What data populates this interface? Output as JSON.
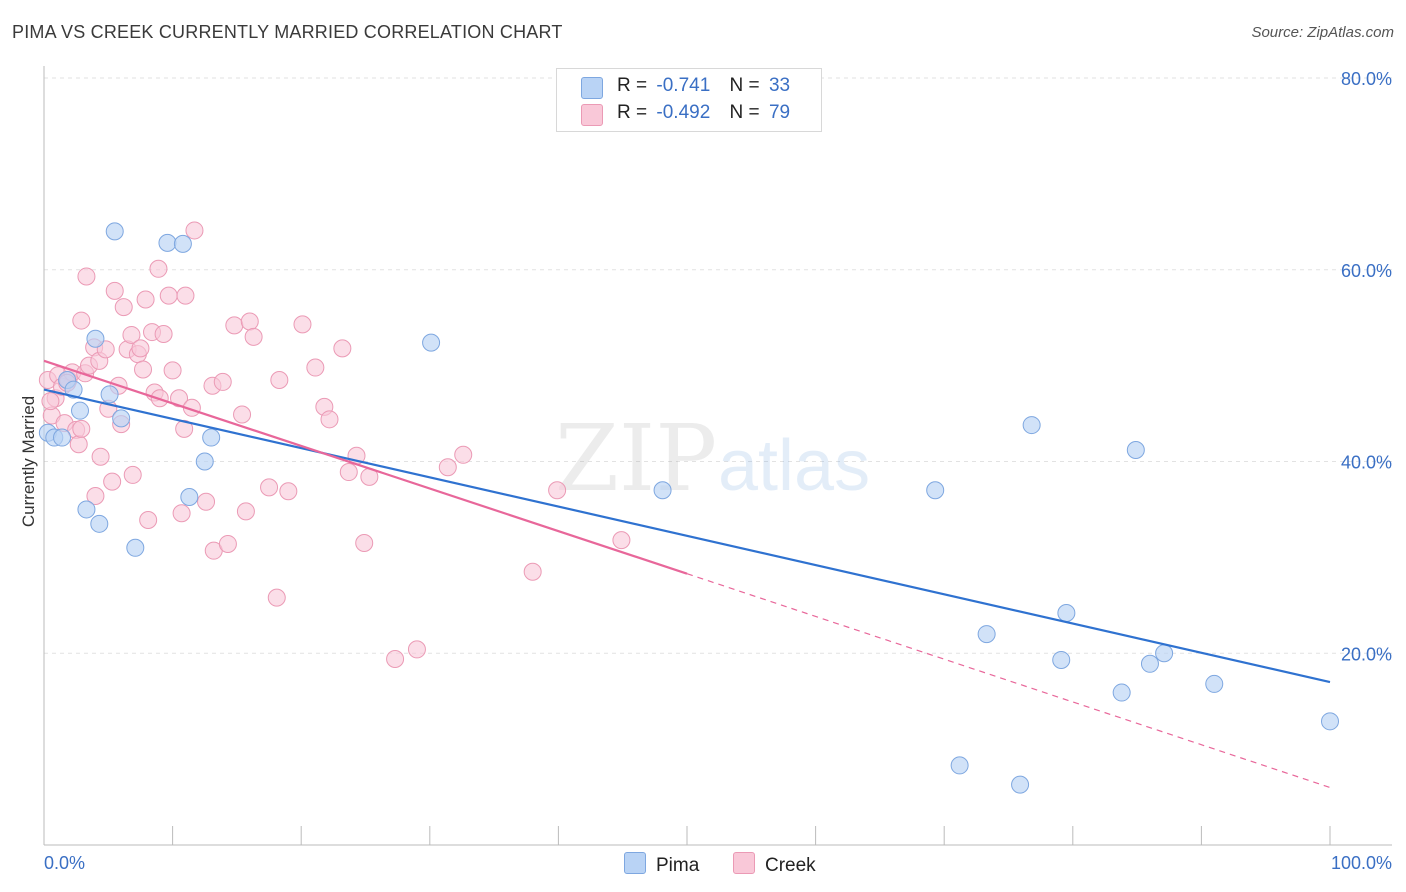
{
  "title": "PIMA VS CREEK CURRENTLY MARRIED CORRELATION CHART",
  "source": "Source: ZipAtlas.com",
  "watermark": {
    "zip": "ZIP",
    "atlas": "atlas"
  },
  "legend": {
    "rows": [
      {
        "r_label": "R =",
        "r_value": "-0.741",
        "n_label": "N =",
        "n_value": "33"
      },
      {
        "r_label": "R =",
        "r_value": "-0.492",
        "n_label": "N =",
        "n_value": "79"
      }
    ]
  },
  "bottom_legend": {
    "pima": "Pima",
    "creek": "Creek"
  },
  "colors": {
    "pima_fill": "#b9d3f5",
    "pima_stroke": "#7ea7e0",
    "pima_line": "#2f72d0",
    "creek_fill": "#f9c8d8",
    "creek_stroke": "#eb9ab5",
    "creek_line": "#e8679a",
    "grid": "#e2e2e2",
    "tick_label": "#3a6fc4"
  },
  "chart_data": {
    "type": "scatter",
    "title": "PIMA VS CREEK CURRENTLY MARRIED CORRELATION CHART",
    "xlabel": "",
    "ylabel": "Currently Married",
    "xlim": [
      0,
      100
    ],
    "ylim": [
      0,
      80
    ],
    "x_tick_labels": [
      "0.0%",
      "100.0%"
    ],
    "y_ticks": [
      20,
      40,
      60,
      80
    ],
    "y_tick_labels": [
      "20.0%",
      "40.0%",
      "60.0%",
      "80.0%"
    ],
    "grid": true,
    "legend_position": "top-center",
    "series": [
      {
        "name": "Pima",
        "r": -0.741,
        "n": 33,
        "trend": {
          "x0": 0,
          "y0": 47.5,
          "x1": 100,
          "y1": 17.0
        },
        "points": [
          [
            0.3,
            43
          ],
          [
            0.8,
            42.5
          ],
          [
            1.4,
            42.5
          ],
          [
            1.8,
            48.5
          ],
          [
            2.3,
            47.5
          ],
          [
            2.8,
            45.3
          ],
          [
            3.3,
            35
          ],
          [
            4.0,
            52.8
          ],
          [
            4.3,
            33.5
          ],
          [
            5.1,
            47
          ],
          [
            5.5,
            64
          ],
          [
            6.0,
            44.5
          ],
          [
            7.1,
            31
          ],
          [
            9.6,
            62.8
          ],
          [
            10.8,
            62.7
          ],
          [
            11.3,
            36.3
          ],
          [
            12.5,
            40
          ],
          [
            13.0,
            42.5
          ],
          [
            30.1,
            52.4
          ],
          [
            48.1,
            37
          ],
          [
            69.3,
            37
          ],
          [
            71.2,
            8.3
          ],
          [
            73.3,
            22
          ],
          [
            75.9,
            6.3
          ],
          [
            76.8,
            43.8
          ],
          [
            79.1,
            19.3
          ],
          [
            79.5,
            24.2
          ],
          [
            83.8,
            15.9
          ],
          [
            84.9,
            41.2
          ],
          [
            86.0,
            18.9
          ],
          [
            87.1,
            20.0
          ],
          [
            91.0,
            16.8
          ],
          [
            100.0,
            12.9
          ]
        ]
      },
      {
        "name": "Creek",
        "r": -0.492,
        "n": 79,
        "trend": {
          "x0": 0,
          "y0": 50.5,
          "x1": 50,
          "y1": 28.3,
          "dash_x1": 100,
          "dash_y1": 6.0
        },
        "points": [
          [
            0.3,
            48.5
          ],
          [
            0.6,
            44.8
          ],
          [
            0.9,
            46.6
          ],
          [
            1.1,
            49
          ],
          [
            1.4,
            47.8
          ],
          [
            1.6,
            44
          ],
          [
            1.9,
            48.5
          ],
          [
            2.2,
            49.3
          ],
          [
            2.5,
            43.3
          ],
          [
            2.7,
            41.8
          ],
          [
            2.9,
            54.7
          ],
          [
            3.2,
            49.2
          ],
          [
            3.3,
            59.3
          ],
          [
            3.5,
            50
          ],
          [
            3.9,
            51.9
          ],
          [
            4.0,
            36.4
          ],
          [
            4.3,
            50.5
          ],
          [
            4.4,
            40.5
          ],
          [
            4.8,
            51.7
          ],
          [
            5.0,
            45.5
          ],
          [
            5.3,
            37.9
          ],
          [
            5.5,
            57.8
          ],
          [
            5.8,
            47.9
          ],
          [
            6.0,
            43.9
          ],
          [
            6.2,
            56.1
          ],
          [
            6.5,
            51.7
          ],
          [
            6.8,
            53.2
          ],
          [
            6.9,
            38.6
          ],
          [
            7.3,
            51.2
          ],
          [
            7.5,
            51.8
          ],
          [
            7.7,
            49.6
          ],
          [
            7.9,
            56.9
          ],
          [
            8.1,
            33.9
          ],
          [
            8.4,
            53.5
          ],
          [
            8.6,
            47.2
          ],
          [
            8.9,
            60.1
          ],
          [
            9.0,
            46.6
          ],
          [
            9.3,
            53.3
          ],
          [
            9.7,
            57.3
          ],
          [
            10.0,
            49.5
          ],
          [
            10.5,
            46.6
          ],
          [
            10.7,
            34.6
          ],
          [
            10.9,
            43.4
          ],
          [
            11.0,
            57.3
          ],
          [
            11.5,
            45.6
          ],
          [
            11.7,
            64.1
          ],
          [
            12.6,
            35.8
          ],
          [
            13.1,
            47.9
          ],
          [
            13.2,
            30.7
          ],
          [
            13.9,
            48.3
          ],
          [
            14.3,
            31.4
          ],
          [
            14.8,
            54.2
          ],
          [
            15.4,
            44.9
          ],
          [
            15.7,
            34.8
          ],
          [
            16.0,
            54.6
          ],
          [
            16.3,
            53
          ],
          [
            17.5,
            37.3
          ],
          [
            18.1,
            25.8
          ],
          [
            18.3,
            48.5
          ],
          [
            19.0,
            36.9
          ],
          [
            20.1,
            54.3
          ],
          [
            21.1,
            49.8
          ],
          [
            21.8,
            45.7
          ],
          [
            22.2,
            44.4
          ],
          [
            23.2,
            51.8
          ],
          [
            23.7,
            38.9
          ],
          [
            24.3,
            40.6
          ],
          [
            24.9,
            31.5
          ],
          [
            25.3,
            38.4
          ],
          [
            27.3,
            19.4
          ],
          [
            29.0,
            20.4
          ],
          [
            31.4,
            39.4
          ],
          [
            32.6,
            40.7
          ],
          [
            38.0,
            28.5
          ],
          [
            39.9,
            37.0
          ],
          [
            44.9,
            31.8
          ],
          [
            0.5,
            46.3
          ],
          [
            1.8,
            48.2
          ],
          [
            2.9,
            43.4
          ]
        ]
      }
    ]
  }
}
